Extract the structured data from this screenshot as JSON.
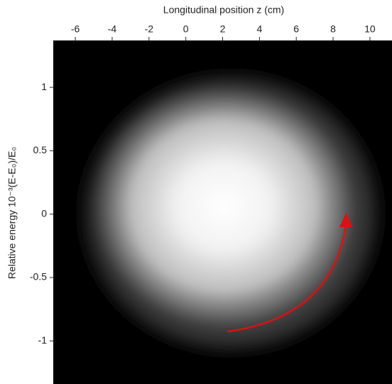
{
  "chart_data": {
    "type": "image",
    "xlabel": "Longitudinal position z (cm)",
    "ylabel": "Relative energy 10⁻³(E-E₀)/E₀",
    "xlim": [
      -7.2,
      11.2
    ],
    "xticks": [
      -6,
      -4,
      -2,
      0,
      2,
      4,
      6,
      8,
      10
    ],
    "ylim": [
      -1.34,
      1.37
    ],
    "yticks": [
      -1,
      -0.5,
      0,
      0.5,
      1
    ]
  }
}
